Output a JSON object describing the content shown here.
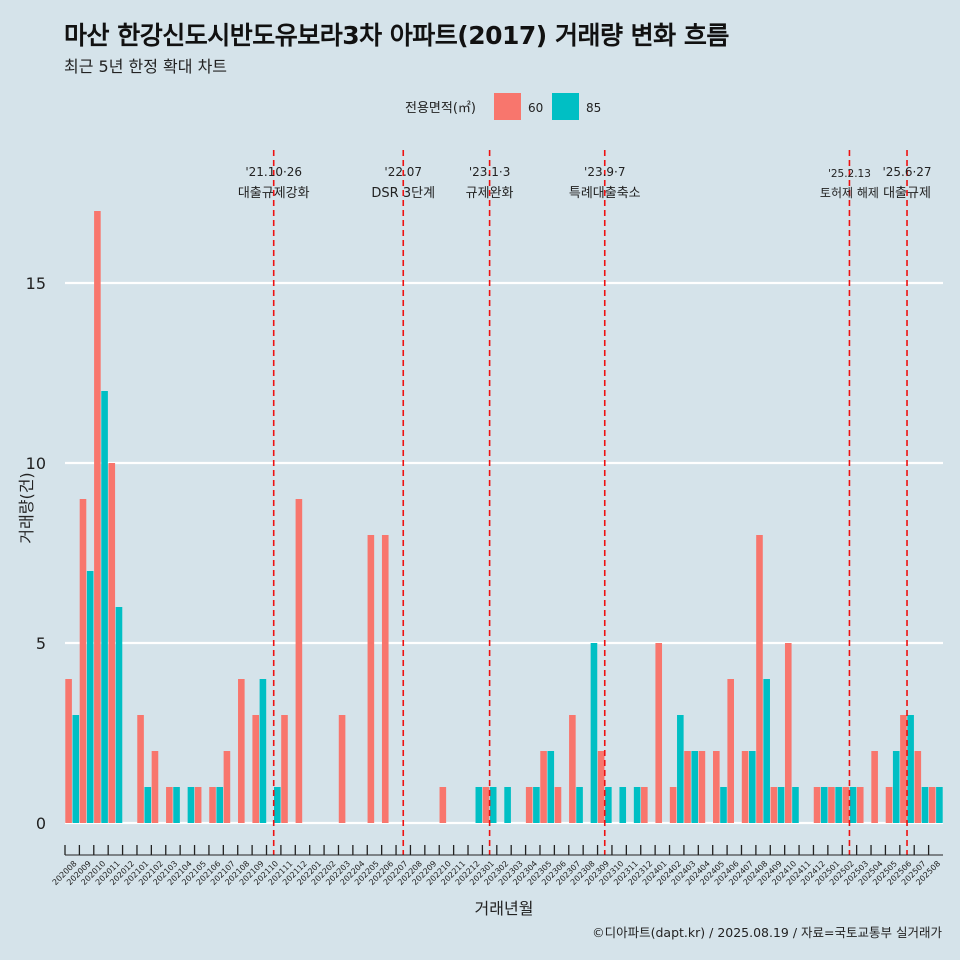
{
  "title": "마산 한강신도시반도유보라3차 아파트(2017) 거래량 변화 흐름",
  "subtitle": "최근 5년 한정 확대 차트",
  "caption": "©디아파트(dapt.kr) / 2025.08.19 / 자료=국토교통부 실거래가",
  "chart_data": {
    "type": "bar",
    "xlabel": "거래년월",
    "ylabel": "거래량(건)",
    "ylim": [
      0,
      17.5
    ],
    "yticks": [
      0,
      5,
      10,
      15
    ],
    "grid": true,
    "legend": {
      "title": "전용면적(㎡)",
      "position": "top"
    },
    "colors": {
      "60": "#f8766d",
      "85": "#00bfc4",
      "vline": "#ee1111",
      "gridline": "#ffffff"
    },
    "categories": [
      "202008",
      "202009",
      "202010",
      "202011",
      "202012",
      "202101",
      "202102",
      "202103",
      "202104",
      "202105",
      "202106",
      "202107",
      "202108",
      "202109",
      "202110",
      "202111",
      "202112",
      "202201",
      "202202",
      "202203",
      "202204",
      "202205",
      "202206",
      "202207",
      "202208",
      "202209",
      "202210",
      "202211",
      "202212",
      "202301",
      "202302",
      "202303",
      "202304",
      "202305",
      "202306",
      "202307",
      "202308",
      "202309",
      "202310",
      "202311",
      "202312",
      "202401",
      "202402",
      "202403",
      "202404",
      "202405",
      "202406",
      "202407",
      "202408",
      "202409",
      "202410",
      "202411",
      "202412",
      "202501",
      "202502",
      "202503",
      "202504",
      "202505",
      "202506",
      "202507",
      "202508"
    ],
    "series": [
      {
        "name": "60",
        "values": [
          4,
          9,
          17,
          10,
          0,
          3,
          2,
          1,
          0,
          1,
          1,
          2,
          4,
          3,
          0,
          3,
          9,
          0,
          0,
          3,
          0,
          8,
          8,
          0,
          0,
          0,
          1,
          0,
          0,
          1,
          0,
          0,
          1,
          2,
          1,
          3,
          0,
          2,
          0,
          0,
          1,
          5,
          1,
          2,
          2,
          2,
          4,
          2,
          8,
          1,
          5,
          0,
          1,
          1,
          1,
          1,
          2,
          1,
          3,
          2,
          1
        ]
      },
      {
        "name": "85",
        "values": [
          3,
          7,
          12,
          6,
          0,
          1,
          0,
          1,
          1,
          0,
          1,
          0,
          0,
          4,
          1,
          0,
          0,
          0,
          0,
          0,
          0,
          0,
          0,
          0,
          0,
          0,
          0,
          0,
          1,
          1,
          1,
          0,
          1,
          2,
          0,
          1,
          5,
          1,
          1,
          1,
          0,
          0,
          3,
          2,
          0,
          1,
          0,
          2,
          4,
          1,
          1,
          0,
          1,
          1,
          1,
          0,
          0,
          2,
          3,
          1,
          1
        ]
      }
    ],
    "annotations": [
      {
        "category": "202110",
        "date": "'21.10·26",
        "label": "대출규제강화"
      },
      {
        "category": "202207",
        "date": "'22.07",
        "label": "DSR 3단계"
      },
      {
        "category": "202301",
        "date": "'23.1·3",
        "label": "규제완화"
      },
      {
        "category": "202309",
        "date": "'23.9·7",
        "label": "특례대출축소"
      },
      {
        "category": "202502",
        "date": "'25.2.13",
        "label": "토허제 해제"
      },
      {
        "category": "202506",
        "date": "'25.6·27",
        "label": "대출규제"
      }
    ]
  }
}
